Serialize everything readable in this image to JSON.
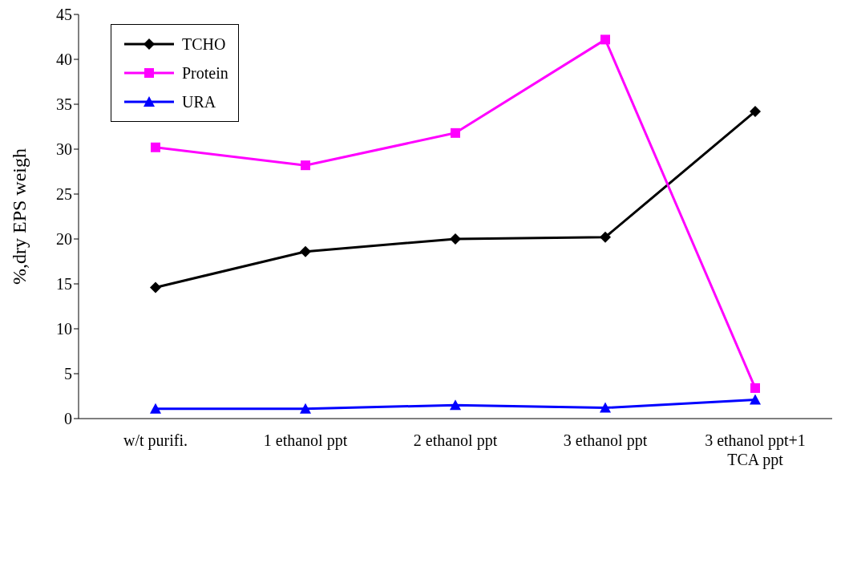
{
  "chart_data": {
    "type": "line",
    "ylabel": "%,dry EPS weigh",
    "categories": [
      "w/t purifi.",
      "1 ethanol ppt",
      "2 ethanol ppt",
      "3 ethanol ppt",
      "3 ethanol ppt+1 TCA ppt"
    ],
    "series": [
      {
        "name": "TCHO",
        "color": "#000000",
        "marker": "diamond",
        "values": [
          14.6,
          18.6,
          20.0,
          20.2,
          34.2
        ]
      },
      {
        "name": "Protein",
        "color": "#ff00ff",
        "marker": "square",
        "values": [
          30.2,
          28.2,
          31.8,
          42.2,
          3.4
        ]
      },
      {
        "name": "URA",
        "color": "#0000ff",
        "marker": "triangle",
        "values": [
          1.1,
          1.1,
          1.5,
          1.2,
          2.1
        ]
      }
    ],
    "ylim": [
      0,
      45
    ],
    "yticks": [
      0,
      5,
      10,
      15,
      20,
      25,
      30,
      35,
      40,
      45
    ],
    "grid": false,
    "legend": "top left",
    "line_style": "solid"
  }
}
